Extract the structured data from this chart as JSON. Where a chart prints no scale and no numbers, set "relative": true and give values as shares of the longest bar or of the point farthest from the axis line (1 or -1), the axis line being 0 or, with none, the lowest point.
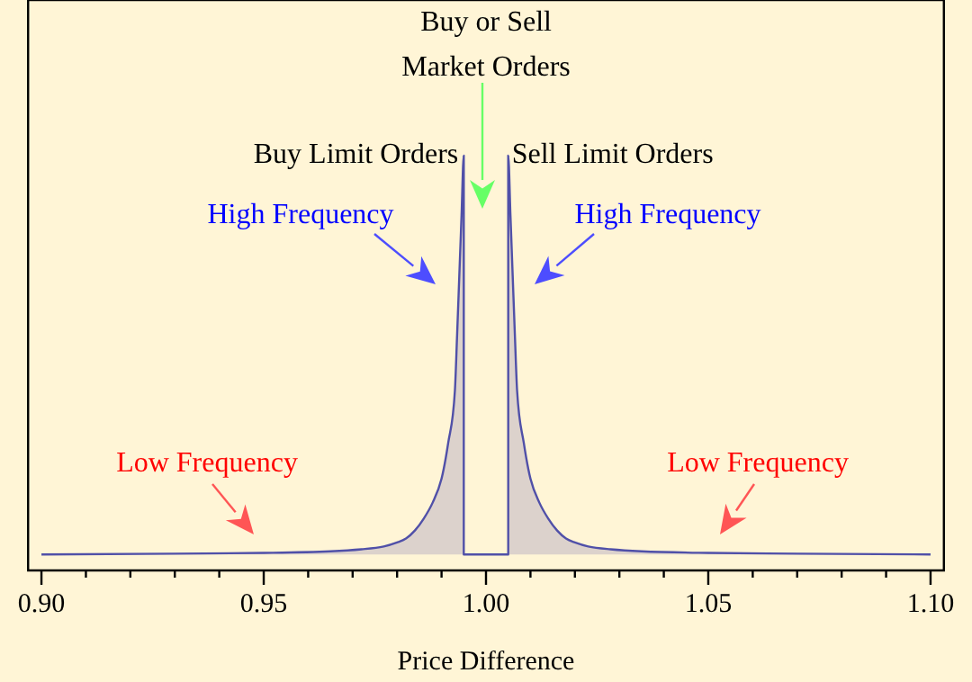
{
  "chart_data": {
    "type": "area",
    "xlabel": "Price Difference",
    "relative": true,
    "xlim": [
      0.897,
      1.103
    ],
    "xticks": [
      {
        "value": 0.9,
        "label": "0.90"
      },
      {
        "value": 0.91,
        "label": null
      },
      {
        "value": 0.92,
        "label": null
      },
      {
        "value": 0.93,
        "label": null
      },
      {
        "value": 0.94,
        "label": null
      },
      {
        "value": 0.95,
        "label": "0.95"
      },
      {
        "value": 0.96,
        "label": null
      },
      {
        "value": 0.97,
        "label": null
      },
      {
        "value": 0.98,
        "label": null
      },
      {
        "value": 0.99,
        "label": null
      },
      {
        "value": 1.0,
        "label": "1.00"
      },
      {
        "value": 1.01,
        "label": null
      },
      {
        "value": 1.02,
        "label": null
      },
      {
        "value": 1.03,
        "label": null
      },
      {
        "value": 1.04,
        "label": null
      },
      {
        "value": 1.05,
        "label": "1.05"
      },
      {
        "value": 1.06,
        "label": null
      },
      {
        "value": 1.07,
        "label": null
      },
      {
        "value": 1.08,
        "label": null
      },
      {
        "value": 1.09,
        "label": null
      },
      {
        "value": 1.1,
        "label": "1.10"
      }
    ],
    "series": [
      {
        "color": "#5050a8",
        "x": [
          0.9,
          0.93,
          0.95,
          0.965,
          0.972,
          0.977,
          0.98,
          0.982,
          0.984,
          0.986,
          0.988,
          0.99,
          0.9915,
          0.993,
          0.9935,
          0.994,
          0.9945,
          0.995,
          0.995,
          1.005,
          1.005,
          1.0055,
          1.006,
          1.0065,
          1.007,
          1.0085,
          1.01,
          1.012,
          1.014,
          1.016,
          1.018,
          1.02,
          1.023,
          1.028,
          1.035,
          1.05,
          1.07,
          1.1
        ],
        "values": [
          0,
          0.002,
          0.004,
          0.008,
          0.013,
          0.02,
          0.03,
          0.04,
          0.06,
          0.09,
          0.13,
          0.19,
          0.28,
          0.41,
          0.55,
          0.7,
          0.85,
          1,
          0,
          0,
          1,
          0.85,
          0.7,
          0.55,
          0.41,
          0.28,
          0.19,
          0.13,
          0.09,
          0.06,
          0.04,
          0.03,
          0.02,
          0.013,
          0.008,
          0.004,
          0.002,
          0
        ]
      }
    ],
    "annotations": [
      "Buy or Sell\nMarket Orders",
      {
        "text": "Buy Limit Orders",
        "x": 0.995,
        "y": 1
      },
      {
        "text": "Sell Limit Orders",
        "x": 1.005,
        "y": 1
      },
      "High Frequency",
      "High Frequency",
      "Low Frequency",
      "Low Frequency"
    ]
  }
}
